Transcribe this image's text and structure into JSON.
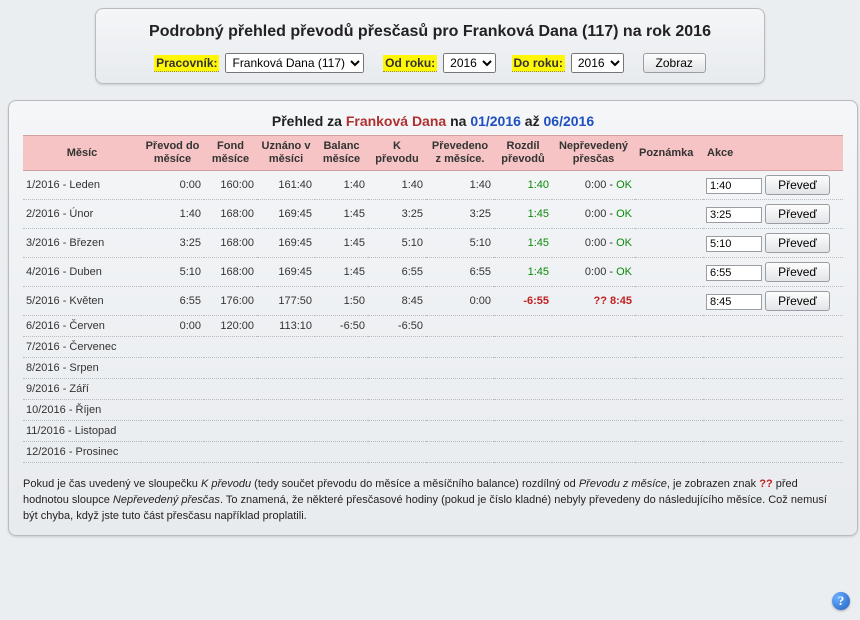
{
  "header": {
    "title": "Podrobný přehled převodů přesčasů pro Franková Dana (117) na rok 2016",
    "worker_label": "Pracovník:",
    "worker_value": "Franková Dana (117)",
    "from_label": "Od roku:",
    "from_value": "2016",
    "to_label": "Do roku:",
    "to_value": "2016",
    "submit": "Zobraz"
  },
  "overview": {
    "prefix": "Přehled za ",
    "name": "Franková Dana",
    "mid": " na ",
    "range_from": "01/2016",
    "range_sep": " až ",
    "range_to": "06/2016"
  },
  "columns": {
    "mesic": "Měsíc",
    "prevod_do": "Převod do měsíce",
    "fond": "Fond měsíce",
    "uznano": "Uznáno v měsíci",
    "balanc": "Balanc měsíce",
    "kprevodu": "K převodu",
    "prevedeno": "Převedeno z měsíce.",
    "rozdil": "Rozdíl převodů",
    "neprev": "Nepřevedený přesčas",
    "poznamka": "Poznámka",
    "akce": "Akce"
  },
  "rows": [
    {
      "mesic": "1/2016 - Leden",
      "prevod_do": "0:00",
      "fond": "160:00",
      "uznano": "161:40",
      "balanc": "1:40",
      "kprevodu": "1:40",
      "prevedeno": "1:40",
      "rozdil": "1:40",
      "rozdil_cls": "green",
      "neprev": "0:00",
      "neprev_ok": "OK",
      "amount": "1:40",
      "btn": "Převeď"
    },
    {
      "mesic": "2/2016 - Únor",
      "prevod_do": "1:40",
      "fond": "168:00",
      "uznano": "169:45",
      "balanc": "1:45",
      "kprevodu": "3:25",
      "prevedeno": "3:25",
      "rozdil": "1:45",
      "rozdil_cls": "green",
      "neprev": "0:00",
      "neprev_ok": "OK",
      "amount": "3:25",
      "btn": "Převeď"
    },
    {
      "mesic": "3/2016 - Březen",
      "prevod_do": "3:25",
      "fond": "168:00",
      "uznano": "169:45",
      "balanc": "1:45",
      "kprevodu": "5:10",
      "prevedeno": "5:10",
      "rozdil": "1:45",
      "rozdil_cls": "green",
      "neprev": "0:00",
      "neprev_ok": "OK",
      "amount": "5:10",
      "btn": "Převeď"
    },
    {
      "mesic": "4/2016 - Duben",
      "prevod_do": "5:10",
      "fond": "168:00",
      "uznano": "169:45",
      "balanc": "1:45",
      "kprevodu": "6:55",
      "prevedeno": "6:55",
      "rozdil": "1:45",
      "rozdil_cls": "green",
      "neprev": "0:00",
      "neprev_ok": "OK",
      "amount": "6:55",
      "btn": "Převeď"
    },
    {
      "mesic": "5/2016 - Květen",
      "prevod_do": "6:55",
      "fond": "176:00",
      "uznano": "177:50",
      "balanc": "1:50",
      "kprevodu": "8:45",
      "prevedeno": "0:00",
      "rozdil": "-6:55",
      "rozdil_cls": "red",
      "neprev": "8:45",
      "neprev_q": "??",
      "amount": "8:45",
      "btn": "Převeď"
    },
    {
      "mesic": "6/2016 - Červen",
      "prevod_do": "0:00",
      "fond": "120:00",
      "uznano": "113:10",
      "balanc": "-6:50",
      "kprevodu": "-6:50"
    },
    {
      "mesic": "7/2016 - Červenec"
    },
    {
      "mesic": "8/2016 - Srpen"
    },
    {
      "mesic": "9/2016 - Září"
    },
    {
      "mesic": "10/2016 - Říjen"
    },
    {
      "mesic": "11/2016 - Listopad"
    },
    {
      "mesic": "12/2016 - Prosinec"
    }
  ],
  "footnote": {
    "p1a": "Pokud je čas uvedený ve sloupečku ",
    "p1b": "K převodu",
    "p1c": " (tedy součet převodu do měsíce a měsíčního balance) rozdílný od ",
    "p2a": "Převodu z měsíce",
    "p2b": ", je zobrazen znak ",
    "p2q": "??",
    "p2c": " před hodnotou sloupce ",
    "p2d": "Nepřevedený přesčas",
    "p2e": ". To znamená, že některé přesčasové hodiny (pokud je číslo kladné) nebyly převedeny do následujícího měsíce. Což nemusí být chyba, když jste tuto část přesčasu například proplatili."
  },
  "help": "?"
}
